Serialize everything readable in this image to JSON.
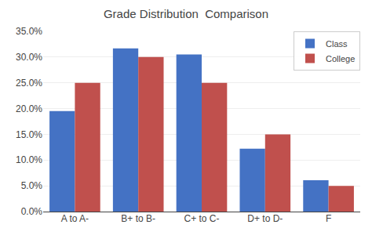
{
  "chart_data": {
    "type": "bar",
    "title": "Grade Distribution  Comparison",
    "categories": [
      "A to A-",
      "B+ to B-",
      "C+ to C-",
      "D+ to D-",
      "F"
    ],
    "series": [
      {
        "name": "Class",
        "color": "#4472C4",
        "values": [
          19.5,
          31.7,
          30.5,
          12.2,
          6.1
        ]
      },
      {
        "name": "College",
        "color": "#C0504D",
        "values": [
          25.0,
          30.0,
          25.0,
          15.0,
          5.0
        ]
      }
    ],
    "ylim": [
      0,
      35
    ],
    "yticks": [
      {
        "value": 0,
        "label": "0.0%"
      },
      {
        "value": 5,
        "label": "5.0%"
      },
      {
        "value": 10,
        "label": "10.0%"
      },
      {
        "value": 15,
        "label": "15.0%"
      },
      {
        "value": 20,
        "label": "20.0%"
      },
      {
        "value": 25,
        "label": "25.0%"
      },
      {
        "value": 30,
        "label": "30.0%"
      },
      {
        "value": 35,
        "label": "35.0%"
      }
    ],
    "grid": true,
    "legend": "upper right"
  }
}
